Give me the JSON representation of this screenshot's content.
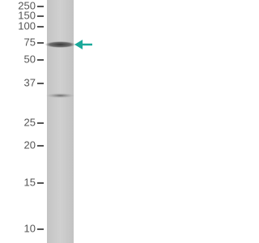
{
  "markers": [
    "250",
    "150",
    "100",
    "75",
    "50",
    "37",
    "25",
    "20",
    "15",
    "10"
  ]
}
